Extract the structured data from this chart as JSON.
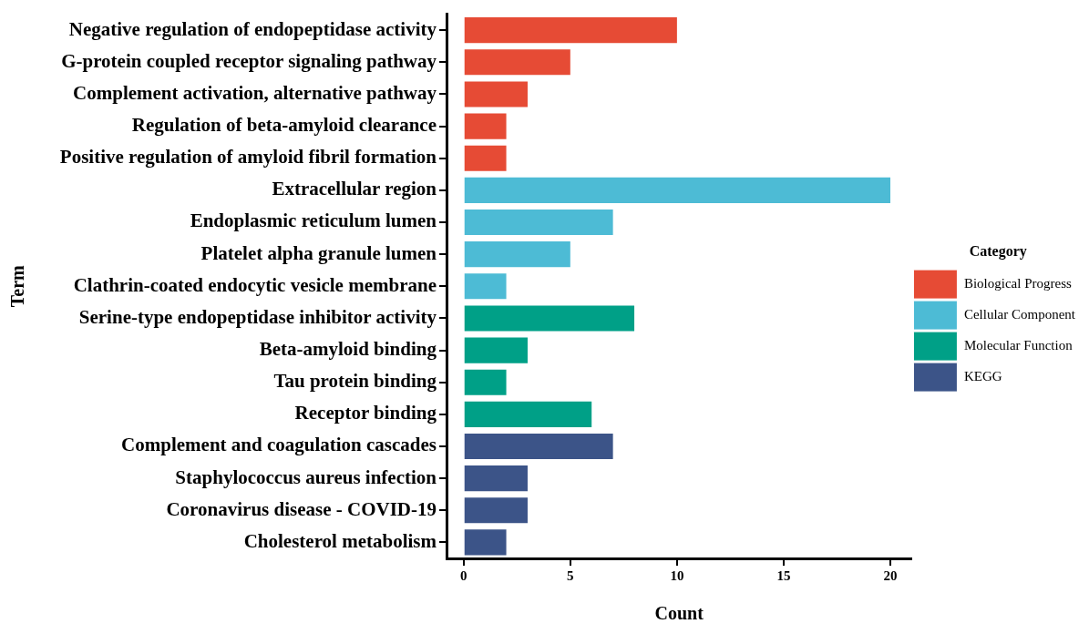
{
  "chart_data": {
    "type": "bar",
    "orientation": "horizontal",
    "stacked": true,
    "xlabel": "Count",
    "ylabel": "Term",
    "legend": "right",
    "legend_title": "Category",
    "categories": [
      "Negative regulation of endopeptidase activity",
      "G-protein coupled receptor signaling pathway",
      "Complement activation, alternative pathway",
      "Regulation of beta-amyloid clearance",
      "Positive regulation of amyloid fibril formation",
      "Extracellular region",
      "Endoplasmic reticulum lumen",
      "Platelet alpha granule lumen",
      "Clathrin-coated endocytic vesicle membrane",
      "Serine-type endopeptidase inhibitor activity",
      "Beta-amyloid binding",
      "Tau protein binding",
      "Receptor binding",
      "Complement and coagulation cascades",
      "Staphylococcus aureus infection",
      "Coronavirus disease - COVID-19",
      "Cholesterol metabolism"
    ],
    "series": [
      {
        "name": "Biological Progress",
        "color": "#e64b35",
        "values": [
          10,
          5,
          3,
          2,
          2,
          null,
          null,
          null,
          null,
          null,
          null,
          null,
          null,
          null,
          null,
          null,
          null
        ]
      },
      {
        "name": "Cellular Component",
        "color": "#4dbbd5",
        "values": [
          null,
          null,
          null,
          null,
          null,
          20,
          7,
          5,
          2,
          null,
          null,
          null,
          null,
          null,
          null,
          null,
          null
        ]
      },
      {
        "name": "Molecular Function",
        "color": "#00a087",
        "values": [
          null,
          null,
          null,
          null,
          null,
          null,
          null,
          null,
          null,
          8,
          3,
          2,
          6,
          null,
          null,
          null,
          null
        ]
      },
      {
        "name": "KEGG",
        "color": "#3c5488",
        "values": [
          null,
          null,
          null,
          null,
          null,
          null,
          null,
          null,
          null,
          null,
          null,
          null,
          null,
          7,
          3,
          3,
          2
        ]
      }
    ],
    "xlim": [
      -0.8,
      21
    ],
    "xticks": [
      0,
      5,
      10,
      15,
      20
    ]
  }
}
